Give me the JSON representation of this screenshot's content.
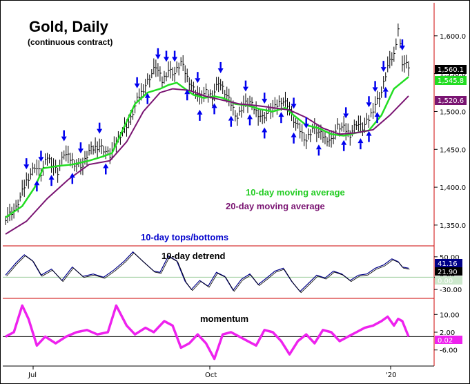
{
  "chart_data": [
    {
      "panel": "price",
      "type": "line",
      "title": "Gold, Daily",
      "subtitle": "(continuous contract)",
      "xlabel": "",
      "ylabel": "",
      "x_ticks": [
        "Jul",
        "Oct",
        "'20"
      ],
      "y_ticks": [
        1350,
        1400,
        1450,
        1500,
        1550,
        1600
      ],
      "y_tick_labels": [
        "1,350.0",
        "1,400.0",
        "1,450.0",
        "1,500.0",
        "1,550.0",
        "1,600.0"
      ],
      "ylim": [
        1328,
        1640
      ],
      "grid": false,
      "close_path": [
        [
          0,
          1360
        ],
        [
          5,
          1372
        ],
        [
          10,
          1408
        ],
        [
          14,
          1428
        ],
        [
          17,
          1418
        ],
        [
          20,
          1440
        ],
        [
          25,
          1420
        ],
        [
          28,
          1445
        ],
        [
          33,
          1432
        ],
        [
          37,
          1428
        ],
        [
          40,
          1448
        ],
        [
          45,
          1455
        ],
        [
          50,
          1442
        ],
        [
          55,
          1470
        ],
        [
          60,
          1490
        ],
        [
          63,
          1515
        ],
        [
          66,
          1530
        ],
        [
          69,
          1545
        ],
        [
          72,
          1560
        ],
        [
          75,
          1540
        ],
        [
          78,
          1555
        ],
        [
          81,
          1550
        ],
        [
          84,
          1565
        ],
        [
          87,
          1545
        ],
        [
          90,
          1530
        ],
        [
          93,
          1518
        ],
        [
          96,
          1525
        ],
        [
          99,
          1520
        ],
        [
          102,
          1540
        ],
        [
          105,
          1525
        ],
        [
          108,
          1510
        ],
        [
          111,
          1492
        ],
        [
          114,
          1510
        ],
        [
          117,
          1512
        ],
        [
          120,
          1500
        ],
        [
          123,
          1492
        ],
        [
          126,
          1500
        ],
        [
          129,
          1505
        ],
        [
          132,
          1515
        ],
        [
          135,
          1510
        ],
        [
          138,
          1488
        ],
        [
          141,
          1475
        ],
        [
          144,
          1462
        ],
        [
          147,
          1478
        ],
        [
          150,
          1472
        ],
        [
          153,
          1465
        ],
        [
          156,
          1462
        ],
        [
          159,
          1480
        ],
        [
          162,
          1478
        ],
        [
          165,
          1470
        ],
        [
          168,
          1485
        ],
        [
          171,
          1478
        ],
        [
          174,
          1490
        ],
        [
          177,
          1510
        ],
        [
          180,
          1525
        ],
        [
          183,
          1560
        ],
        [
          186,
          1575
        ],
        [
          188,
          1610
        ],
        [
          190,
          1565
        ],
        [
          193,
          1560
        ]
      ],
      "series": [
        {
          "name": "10-day moving average",
          "color": "#22dd22",
          "points": [
            [
              0,
              1360
            ],
            [
              8,
              1375
            ],
            [
              14,
              1400
            ],
            [
              18,
              1425
            ],
            [
              25,
              1428
            ],
            [
              32,
              1430
            ],
            [
              40,
              1435
            ],
            [
              46,
              1440
            ],
            [
              51,
              1445
            ],
            [
              56,
              1475
            ],
            [
              62,
              1510
            ],
            [
              68,
              1525
            ],
            [
              74,
              1530
            ],
            [
              78,
              1535
            ],
            [
              82,
              1538
            ],
            [
              86,
              1530
            ],
            [
              90,
              1522
            ],
            [
              95,
              1518
            ],
            [
              100,
              1520
            ],
            [
              104,
              1518
            ],
            [
              110,
              1510
            ],
            [
              116,
              1508
            ],
            [
              122,
              1503
            ],
            [
              128,
              1500
            ],
            [
              134,
              1505
            ],
            [
              138,
              1495
            ],
            [
              144,
              1482
            ],
            [
              150,
              1478
            ],
            [
              156,
              1470
            ],
            [
              162,
              1468
            ],
            [
              168,
              1472
            ],
            [
              174,
              1475
            ],
            [
              180,
              1495
            ],
            [
              186,
              1530
            ],
            [
              193,
              1545.8
            ]
          ]
        },
        {
          "name": "20-day moving average",
          "color": "#7a1472",
          "points": [
            [
              0,
              1338
            ],
            [
              10,
              1355
            ],
            [
              20,
              1385
            ],
            [
              30,
              1410
            ],
            [
              40,
              1430
            ],
            [
              50,
              1435
            ],
            [
              58,
              1460
            ],
            [
              66,
              1500
            ],
            [
              74,
              1525
            ],
            [
              80,
              1530
            ],
            [
              88,
              1528
            ],
            [
              96,
              1520
            ],
            [
              104,
              1515
            ],
            [
              112,
              1510
            ],
            [
              120,
              1508
            ],
            [
              128,
              1505
            ],
            [
              136,
              1502
            ],
            [
              144,
              1492
            ],
            [
              152,
              1478
            ],
            [
              160,
              1470
            ],
            [
              168,
              1472
            ],
            [
              176,
              1476
            ],
            [
              184,
              1495
            ],
            [
              193,
              1520.6
            ]
          ]
        }
      ],
      "annotations": [
        "10-day moving average",
        "20-day moving average",
        "10-day tops/bottoms"
      ],
      "current_price_label": "1,560.1",
      "ma10_label": "1,545.8",
      "ma20_label": "1,520.6",
      "tops_x": [
        10,
        17,
        28,
        36,
        45,
        63,
        73,
        77,
        81,
        92,
        103,
        115,
        124,
        138,
        144,
        163,
        174,
        177,
        181,
        190
      ],
      "bottoms_x": [
        15,
        22,
        32,
        48,
        68,
        87,
        93,
        100,
        108,
        117,
        124,
        132,
        138,
        150,
        162,
        170,
        174,
        178,
        182
      ]
    },
    {
      "panel": "detrend",
      "type": "line",
      "title": "10-day detrend",
      "y_ticks": [
        50,
        0,
        -30
      ],
      "y_tick_labels": [
        "50.00",
        "0.00",
        "-30.00"
      ],
      "ylim": [
        -45,
        70
      ],
      "grid": false,
      "current_label": "41.16",
      "second_label": "21.90",
      "zero_label": "0.00",
      "series": [
        {
          "name": "10-day detrend",
          "color": "#000088",
          "points": [
            [
              0,
              5
            ],
            [
              5,
              35
            ],
            [
              9,
              55
            ],
            [
              13,
              40
            ],
            [
              17,
              5
            ],
            [
              22,
              20
            ],
            [
              27,
              -8
            ],
            [
              32,
              25
            ],
            [
              37,
              2
            ],
            [
              42,
              8
            ],
            [
              47,
              0
            ],
            [
              52,
              18
            ],
            [
              57,
              40
            ],
            [
              61,
              62
            ],
            [
              66,
              38
            ],
            [
              71,
              15
            ],
            [
              74,
              12
            ],
            [
              78,
              52
            ],
            [
              82,
              40
            ],
            [
              86,
              -10
            ],
            [
              89,
              -30
            ],
            [
              93,
              -8
            ],
            [
              97,
              -22
            ],
            [
              101,
              12
            ],
            [
              105,
              2
            ],
            [
              109,
              -32
            ],
            [
              113,
              -5
            ],
            [
              117,
              8
            ],
            [
              121,
              -18
            ],
            [
              125,
              -2
            ],
            [
              129,
              15
            ],
            [
              133,
              22
            ],
            [
              137,
              -10
            ],
            [
              141,
              -35
            ],
            [
              145,
              -15
            ],
            [
              149,
              5
            ],
            [
              153,
              -2
            ],
            [
              157,
              15
            ],
            [
              161,
              8
            ],
            [
              165,
              -8
            ],
            [
              169,
              5
            ],
            [
              173,
              8
            ],
            [
              177,
              22
            ],
            [
              181,
              30
            ],
            [
              185,
              45
            ],
            [
              188,
              38
            ],
            [
              190,
              25
            ],
            [
              193,
              21.9
            ]
          ]
        }
      ]
    },
    {
      "panel": "momentum",
      "type": "line",
      "title": "momentum",
      "y_ticks": [
        10,
        2,
        -6
      ],
      "y_tick_labels": [
        "10.00",
        "2.00",
        "-6.00"
      ],
      "ylim": [
        -12,
        16
      ],
      "grid": false,
      "current_label": "0.02",
      "series": [
        {
          "name": "momentum",
          "color": "#ee22ee",
          "points": [
            [
              0,
              0
            ],
            [
              4,
              2
            ],
            [
              8,
              14
            ],
            [
              11,
              8
            ],
            [
              15,
              -4
            ],
            [
              19,
              0
            ],
            [
              24,
              -3
            ],
            [
              29,
              0
            ],
            [
              34,
              2
            ],
            [
              39,
              3
            ],
            [
              44,
              1
            ],
            [
              49,
              2
            ],
            [
              53,
              14
            ],
            [
              58,
              5
            ],
            [
              62,
              1
            ],
            [
              67,
              4
            ],
            [
              71,
              2
            ],
            [
              76,
              7
            ],
            [
              80,
              5
            ],
            [
              84,
              -5
            ],
            [
              88,
              -3
            ],
            [
              92,
              1
            ],
            [
              96,
              -3
            ],
            [
              100,
              -10
            ],
            [
              104,
              1
            ],
            [
              108,
              2
            ],
            [
              112,
              0
            ],
            [
              116,
              -2
            ],
            [
              120,
              -4
            ],
            [
              124,
              3
            ],
            [
              128,
              2
            ],
            [
              132,
              -2
            ],
            [
              136,
              -8
            ],
            [
              140,
              -2
            ],
            [
              144,
              1
            ],
            [
              148,
              -3
            ],
            [
              152,
              3
            ],
            [
              156,
              2
            ],
            [
              160,
              -2
            ],
            [
              164,
              0
            ],
            [
              168,
              2
            ],
            [
              172,
              4
            ],
            [
              176,
              5
            ],
            [
              180,
              7
            ],
            [
              183,
              9
            ],
            [
              186,
              5
            ],
            [
              188,
              8
            ],
            [
              190,
              7
            ],
            [
              193,
              0.02
            ]
          ]
        }
      ]
    }
  ]
}
